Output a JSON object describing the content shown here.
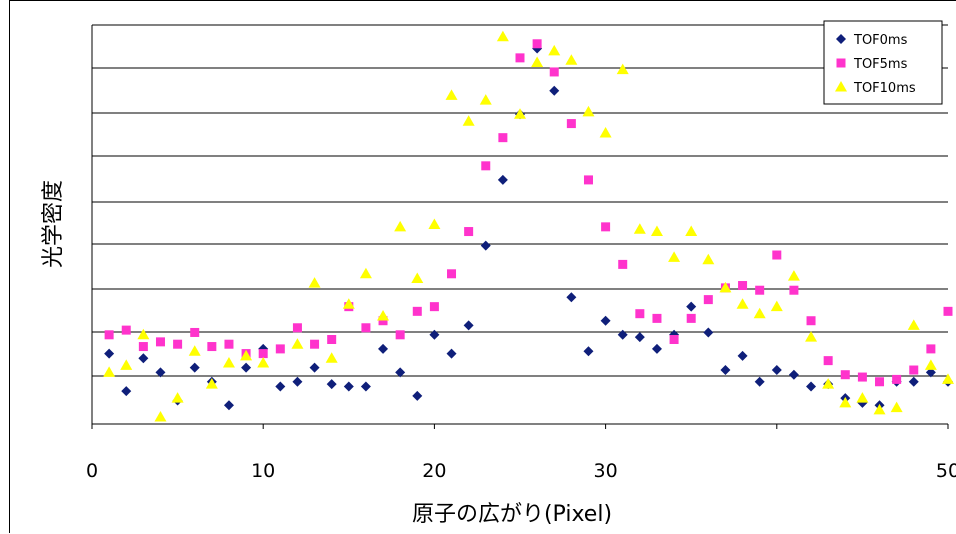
{
  "chart_data": {
    "type": "scatter",
    "title": "",
    "xlabel": "原子の広がり(Pixel)",
    "ylabel": "光学密度",
    "xlim": [
      0,
      50
    ],
    "ylim": [
      0,
      8.5
    ],
    "x_ticks": [
      "0",
      "10",
      "20",
      "30",
      "50"
    ],
    "grid": "horizontal",
    "legend_position": "top-right",
    "series": [
      {
        "name": "TOF0ms",
        "marker": "diamond",
        "color": "#0f1f7a",
        "points": [
          [
            1,
            1.5
          ],
          [
            2,
            0.7
          ],
          [
            3,
            1.4
          ],
          [
            4,
            1.1
          ],
          [
            5,
            0.5
          ],
          [
            6,
            1.2
          ],
          [
            7,
            0.9
          ],
          [
            8,
            0.4
          ],
          [
            9,
            1.2
          ],
          [
            10,
            1.6
          ],
          [
            11,
            0.8
          ],
          [
            12,
            0.9
          ],
          [
            13,
            1.2
          ],
          [
            14,
            0.85
          ],
          [
            15,
            0.8
          ],
          [
            16,
            0.8
          ],
          [
            17,
            1.6
          ],
          [
            18,
            1.1
          ],
          [
            19,
            0.6
          ],
          [
            20,
            1.9
          ],
          [
            21,
            1.5
          ],
          [
            22,
            2.1
          ],
          [
            23,
            3.8
          ],
          [
            24,
            5.2
          ],
          [
            25,
            6.6
          ],
          [
            26,
            8.0
          ],
          [
            27,
            7.1
          ],
          [
            28,
            2.7
          ],
          [
            29,
            1.55
          ],
          [
            30,
            2.2
          ],
          [
            31,
            1.9
          ],
          [
            32,
            1.85
          ],
          [
            33,
            1.6
          ],
          [
            34,
            1.9
          ],
          [
            35,
            2.5
          ],
          [
            36,
            1.95
          ],
          [
            37,
            1.15
          ],
          [
            38,
            1.45
          ],
          [
            39,
            0.9
          ],
          [
            40,
            1.15
          ],
          [
            41,
            1.05
          ],
          [
            42,
            0.8
          ],
          [
            43,
            0.85
          ],
          [
            44,
            0.55
          ],
          [
            45,
            0.45
          ],
          [
            46,
            0.4
          ],
          [
            47,
            0.9
          ],
          [
            48,
            0.9
          ],
          [
            49,
            1.1
          ],
          [
            50,
            0.9
          ]
        ]
      },
      {
        "name": "TOF5ms",
        "marker": "square",
        "color": "#ff33cc",
        "points": [
          [
            1,
            1.9
          ],
          [
            2,
            2.0
          ],
          [
            3,
            1.65
          ],
          [
            4,
            1.75
          ],
          [
            5,
            1.7
          ],
          [
            6,
            1.95
          ],
          [
            7,
            1.65
          ],
          [
            8,
            1.7
          ],
          [
            9,
            1.5
          ],
          [
            10,
            1.5
          ],
          [
            11,
            1.6
          ],
          [
            12,
            2.05
          ],
          [
            13,
            1.7
          ],
          [
            14,
            1.8
          ],
          [
            15,
            2.5
          ],
          [
            16,
            2.05
          ],
          [
            17,
            2.2
          ],
          [
            18,
            1.9
          ],
          [
            19,
            2.4
          ],
          [
            20,
            2.5
          ],
          [
            21,
            3.2
          ],
          [
            22,
            4.1
          ],
          [
            23,
            5.5
          ],
          [
            24,
            6.1
          ],
          [
            25,
            7.8
          ],
          [
            26,
            8.1
          ],
          [
            27,
            7.5
          ],
          [
            28,
            6.4
          ],
          [
            29,
            5.2
          ],
          [
            30,
            4.2
          ],
          [
            31,
            3.4
          ],
          [
            32,
            2.35
          ],
          [
            33,
            2.25
          ],
          [
            34,
            1.8
          ],
          [
            35,
            2.25
          ],
          [
            36,
            2.65
          ],
          [
            37,
            2.9
          ],
          [
            38,
            2.95
          ],
          [
            39,
            2.85
          ],
          [
            40,
            3.6
          ],
          [
            41,
            2.85
          ],
          [
            42,
            2.2
          ],
          [
            43,
            1.35
          ],
          [
            44,
            1.05
          ],
          [
            45,
            1.0
          ],
          [
            46,
            0.9
          ],
          [
            47,
            0.95
          ],
          [
            48,
            1.15
          ],
          [
            49,
            1.6
          ],
          [
            50,
            2.4
          ]
        ]
      },
      {
        "name": "TOF10ms",
        "marker": "triangle",
        "color": "#ffff00",
        "points": [
          [
            1,
            1.1
          ],
          [
            2,
            1.25
          ],
          [
            3,
            1.9
          ],
          [
            4,
            0.15
          ],
          [
            5,
            0.55
          ],
          [
            6,
            1.55
          ],
          [
            7,
            0.85
          ],
          [
            8,
            1.3
          ],
          [
            9,
            1.45
          ],
          [
            10,
            1.3
          ],
          [
            11,
            null
          ],
          [
            12,
            1.7
          ],
          [
            13,
            3.0
          ],
          [
            14,
            1.4
          ],
          [
            15,
            2.55
          ],
          [
            16,
            3.2
          ],
          [
            17,
            2.3
          ],
          [
            18,
            4.2
          ],
          [
            19,
            3.1
          ],
          [
            20,
            4.25
          ],
          [
            21,
            7.0
          ],
          [
            22,
            6.45
          ],
          [
            23,
            6.9
          ],
          [
            24,
            8.25
          ],
          [
            25,
            6.6
          ],
          [
            26,
            7.7
          ],
          [
            27,
            7.95
          ],
          [
            28,
            7.75
          ],
          [
            29,
            6.65
          ],
          [
            30,
            6.2
          ],
          [
            31,
            7.55
          ],
          [
            32,
            4.15
          ],
          [
            33,
            4.1
          ],
          [
            34,
            3.55
          ],
          [
            35,
            4.1
          ],
          [
            36,
            3.5
          ],
          [
            37,
            2.9
          ],
          [
            38,
            2.55
          ],
          [
            39,
            2.35
          ],
          [
            40,
            2.5
          ],
          [
            41,
            3.15
          ],
          [
            42,
            1.85
          ],
          [
            43,
            0.85
          ],
          [
            44,
            0.45
          ],
          [
            45,
            0.55
          ],
          [
            46,
            0.3
          ],
          [
            47,
            0.35
          ],
          [
            48,
            2.1
          ],
          [
            49,
            1.25
          ],
          [
            50,
            0.95
          ]
        ]
      }
    ]
  }
}
